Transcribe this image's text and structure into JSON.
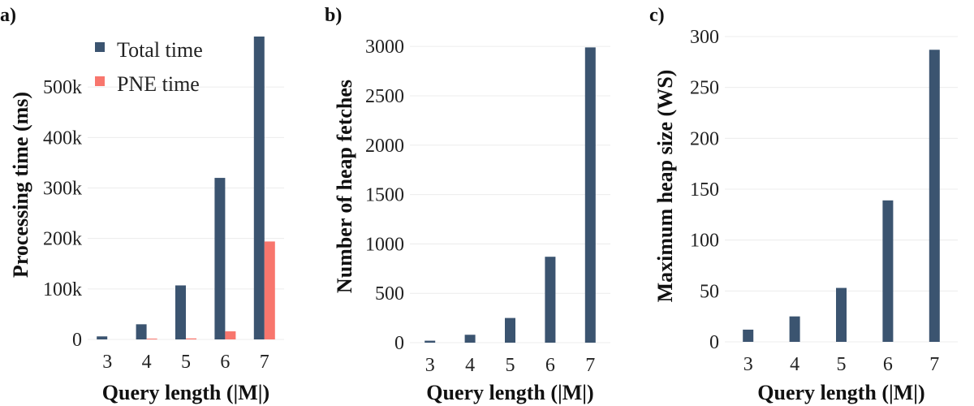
{
  "colors": {
    "total": "#3b5470",
    "pne": "#f8766d"
  },
  "chart_data": [
    {
      "type": "bar",
      "panel_label": "a)",
      "categories": [
        "3",
        "4",
        "5",
        "6",
        "7"
      ],
      "series": [
        {
          "name": "Total time",
          "values": [
            6000,
            30000,
            107000,
            320000,
            600000
          ]
        },
        {
          "name": "PNE time",
          "values": [
            0,
            1000,
            2000,
            16000,
            194000
          ]
        }
      ],
      "xlabel": "Query length (|M|)",
      "ylabel": "Processing time (ms)",
      "ylim": [
        0,
        600000
      ],
      "yticks": [
        0,
        100000,
        200000,
        300000,
        400000,
        500000
      ],
      "ytick_labels": [
        "0",
        "100k",
        "200k",
        "300k",
        "400k",
        "500k"
      ],
      "legend": "top-left",
      "grid": true
    },
    {
      "type": "bar",
      "panel_label": "b)",
      "categories": [
        "3",
        "4",
        "5",
        "6",
        "7"
      ],
      "series": [
        {
          "values": [
            20,
            80,
            250,
            870,
            2990
          ]
        }
      ],
      "xlabel": "Query length (|M|)",
      "ylabel": "Number of heap fetches",
      "ylim": [
        0,
        3100
      ],
      "yticks": [
        0,
        500,
        1000,
        1500,
        2000,
        2500,
        3000
      ],
      "ytick_labels": [
        "0",
        "500",
        "1000",
        "1500",
        "2000",
        "2500",
        "3000"
      ],
      "grid": true
    },
    {
      "type": "bar",
      "panel_label": "c)",
      "categories": [
        "3",
        "4",
        "5",
        "6",
        "7"
      ],
      "series": [
        {
          "values": [
            12,
            25,
            53,
            139,
            287
          ]
        }
      ],
      "xlabel": "Query length (|M|)",
      "ylabel": "Maximum heap size (WS)",
      "ylim": [
        0,
        300
      ],
      "yticks": [
        0,
        50,
        100,
        150,
        200,
        250,
        300
      ],
      "ytick_labels": [
        "0",
        "50",
        "100",
        "150",
        "200",
        "250",
        "300"
      ],
      "grid": true
    }
  ]
}
